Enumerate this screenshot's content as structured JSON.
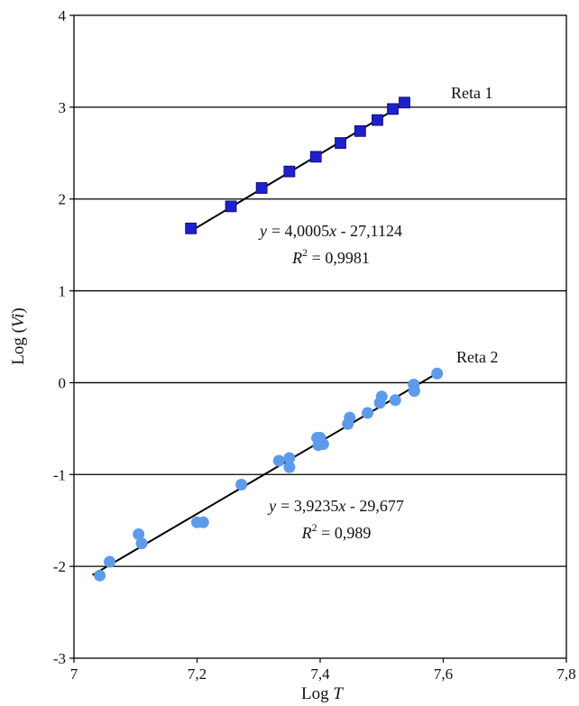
{
  "chart_data": {
    "type": "scatter",
    "title": "",
    "xlabel_prefix": "Log ",
    "xlabel_var": "T",
    "ylabel_prefix": "Log (",
    "ylabel_var": "Vi",
    "ylabel_suffix": ")",
    "xlim": [
      7,
      7.8
    ],
    "ylim": [
      -3,
      4
    ],
    "xticks": [
      7,
      7.2,
      7.4,
      7.6,
      7.8
    ],
    "xtick_labels": [
      "7",
      "7,2",
      "7,4",
      "7,6",
      "7,8"
    ],
    "yticks": [
      -3,
      -2,
      -1,
      0,
      1,
      2,
      3,
      4
    ],
    "ytick_labels": [
      "-3",
      "-2",
      "-1",
      "0",
      "1",
      "2",
      "3",
      "4"
    ],
    "grid": "horizontal",
    "series": [
      {
        "name": "Reta 1",
        "marker": "square",
        "color": "#1f1fcc",
        "x": [
          7.19,
          7.255,
          7.305,
          7.35,
          7.393,
          7.433,
          7.465,
          7.493,
          7.518,
          7.537
        ],
        "y": [
          1.68,
          1.92,
          2.12,
          2.3,
          2.46,
          2.61,
          2.74,
          2.86,
          2.98,
          3.05
        ],
        "fit": {
          "slope": 4.0005,
          "intercept": -27.1124,
          "x_range": [
            7.19,
            7.545
          ],
          "equation_label": "= 4,0005",
          "equation_tail": " - 27,1124",
          "r2_label": " = 0,9981"
        }
      },
      {
        "name": "Reta 2",
        "marker": "circle",
        "color": "#5b9bea",
        "x": [
          7.042,
          7.058,
          7.105,
          7.11,
          7.2,
          7.21,
          7.272,
          7.333,
          7.35,
          7.35,
          7.395,
          7.397,
          7.4,
          7.405,
          7.445,
          7.448,
          7.477,
          7.497,
          7.5,
          7.522,
          7.552,
          7.553,
          7.59
        ],
        "y": [
          -2.1,
          -1.95,
          -1.65,
          -1.75,
          -1.52,
          -1.52,
          -1.11,
          -0.85,
          -0.82,
          -0.92,
          -0.6,
          -0.68,
          -0.6,
          -0.67,
          -0.45,
          -0.38,
          -0.33,
          -0.22,
          -0.15,
          -0.19,
          -0.02,
          -0.09,
          0.1
        ],
        "fit": {
          "slope": 3.9235,
          "intercept": -29.677,
          "x_range": [
            7.03,
            7.595
          ],
          "equation_label": "= 3,9235",
          "equation_tail": " - 29,677",
          "r2_label": " = 0,989"
        }
      }
    ],
    "annotations": {
      "y_var": "y",
      "x_var": "x",
      "r_var": "R",
      "r_sup": "2"
    }
  }
}
